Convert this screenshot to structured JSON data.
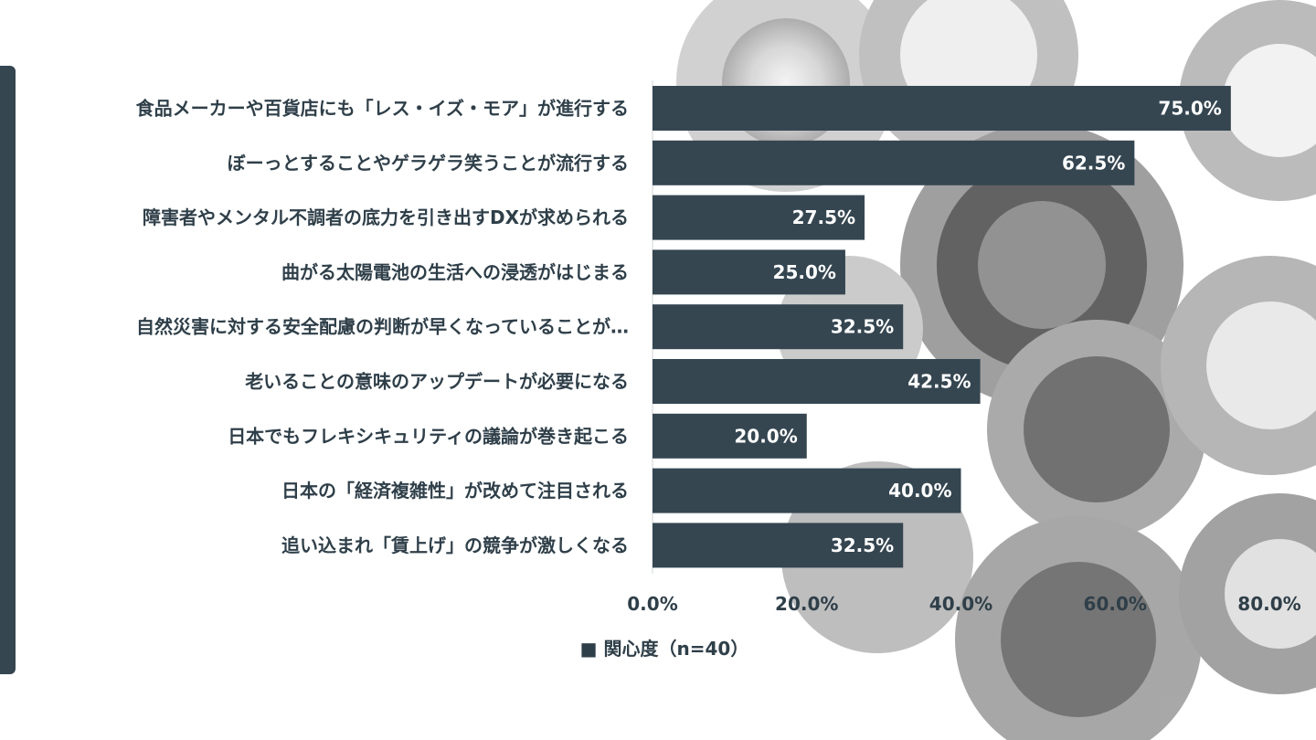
{
  "chart_data": {
    "type": "bar",
    "orientation": "horizontal",
    "categories": [
      "食品メーカーや百貨店にも「レス・イズ・モア」が進行する",
      "ぼーっとすることやゲラゲラ笑うことが流行する",
      "障害者やメンタル不調者の底力を引き出すDXが求められる",
      "曲がる太陽電池の生活への浸透がはじまる",
      "自然災害に対する安全配慮の判断が早くなっていることが…",
      "老いることの意味のアップデートが必要になる",
      "日本でもフレキシキュリティの議論が巻き起こる",
      "日本の「経済複雑性」が改めて注目される",
      "追い込まれ「賃上げ」の競争が激しくなる"
    ],
    "series": [
      {
        "name": "関心度（n=40）",
        "values": [
          75.0,
          62.5,
          27.5,
          25.0,
          32.5,
          42.5,
          20.0,
          40.0,
          32.5
        ],
        "labels": [
          "75.0%",
          "62.5%",
          "27.5%",
          "25.0%",
          "32.5%",
          "42.5%",
          "20.0%",
          "40.0%",
          "32.5%"
        ]
      }
    ],
    "xlim": [
      0,
      80
    ],
    "xticks": [
      "0.0%",
      "20.0%",
      "40.0%",
      "60.0%",
      "80.0%"
    ],
    "title": "",
    "xlabel": "",
    "ylabel": "",
    "legend": {
      "position": "bottom",
      "label": "■ 関心度（n=40）"
    },
    "grid": false,
    "bar_color": "#354651"
  },
  "theme": {
    "accent": "#354651",
    "text": "#2f3f49",
    "background_photo": "grey-camera-lenses"
  }
}
